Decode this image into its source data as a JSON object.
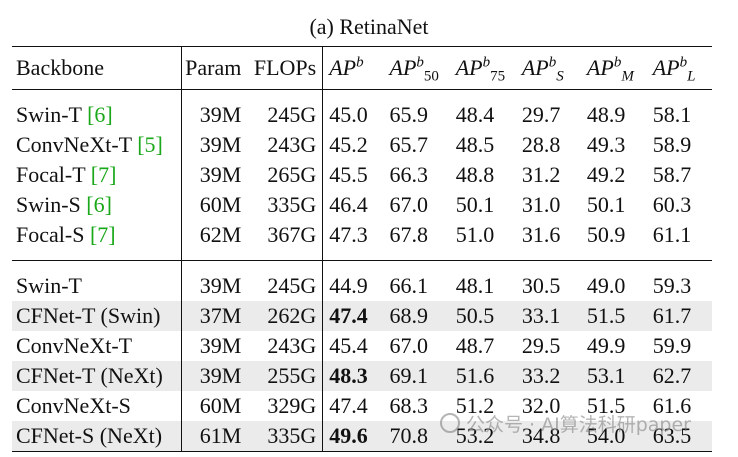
{
  "caption": "(a) RetinaNet",
  "header": {
    "backbone": "Backbone",
    "param": "Param",
    "flops": "FLOPs",
    "metrics": [
      {
        "base": "AP",
        "sup": "b",
        "sub": ""
      },
      {
        "base": "AP",
        "sup": "b",
        "sub": "50"
      },
      {
        "base": "AP",
        "sup": "b",
        "sub": "75"
      },
      {
        "base": "AP",
        "sup": "b",
        "sub": "S"
      },
      {
        "base": "AP",
        "sup": "b",
        "sub": "M"
      },
      {
        "base": "AP",
        "sup": "b",
        "sub": "L"
      }
    ]
  },
  "group1": [
    {
      "name": "Swin-T ",
      "ref": "[6]",
      "param": "39M",
      "flops": "245G",
      "vals": [
        "45.0",
        "65.9",
        "48.4",
        "29.7",
        "48.9",
        "58.1"
      ]
    },
    {
      "name": "ConvNeXt-T ",
      "ref": "[5]",
      "param": "39M",
      "flops": "243G",
      "vals": [
        "45.2",
        "65.7",
        "48.5",
        "28.8",
        "49.3",
        "58.9"
      ]
    },
    {
      "name": "Focal-T ",
      "ref": "[7]",
      "param": "39M",
      "flops": "265G",
      "vals": [
        "45.5",
        "66.3",
        "48.8",
        "31.2",
        "49.2",
        "58.7"
      ]
    },
    {
      "name": "Swin-S ",
      "ref": "[6]",
      "param": "60M",
      "flops": "335G",
      "vals": [
        "46.4",
        "67.0",
        "50.1",
        "31.0",
        "50.1",
        "60.3"
      ]
    },
    {
      "name": "Focal-S ",
      "ref": "[7]",
      "param": "62M",
      "flops": "367G",
      "vals": [
        "47.3",
        "67.8",
        "51.0",
        "31.6",
        "50.9",
        "61.1"
      ]
    }
  ],
  "group2": [
    {
      "name": "Swin-T",
      "param": "39M",
      "flops": "245G",
      "vals": [
        "44.9",
        "66.1",
        "48.1",
        "30.5",
        "49.0",
        "59.3"
      ],
      "highlight": false,
      "bold_ap": false
    },
    {
      "name": "CFNet-T (Swin)",
      "param": "37M",
      "flops": "262G",
      "vals": [
        "47.4",
        "68.9",
        "50.5",
        "33.1",
        "51.5",
        "61.7"
      ],
      "highlight": true,
      "bold_ap": true
    },
    {
      "name": "ConvNeXt-T",
      "param": "39M",
      "flops": "243G",
      "vals": [
        "45.4",
        "67.0",
        "48.7",
        "29.5",
        "49.9",
        "59.9"
      ],
      "highlight": false,
      "bold_ap": false
    },
    {
      "name": "CFNet-T (NeXt)",
      "param": "39M",
      "flops": "255G",
      "vals": [
        "48.3",
        "69.1",
        "51.6",
        "33.2",
        "53.1",
        "62.7"
      ],
      "highlight": true,
      "bold_ap": true
    },
    {
      "name": "ConvNeXt-S",
      "param": "60M",
      "flops": "329G",
      "vals": [
        "47.4",
        "68.3",
        "51.2",
        "32.0",
        "51.5",
        "61.6"
      ],
      "highlight": false,
      "bold_ap": false
    },
    {
      "name": "CFNet-S (NeXt)",
      "param": "61M",
      "flops": "335G",
      "vals": [
        "49.6",
        "70.8",
        "53.2",
        "34.8",
        "54.0",
        "63.5"
      ],
      "highlight": true,
      "bold_ap": true
    }
  ],
  "watermark": "公众号 · AI算法科研paper"
}
